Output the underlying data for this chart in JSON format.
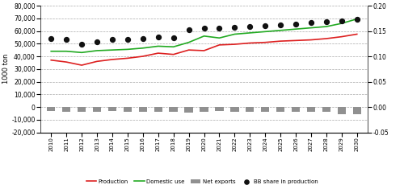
{
  "years": [
    2010,
    2011,
    2012,
    2013,
    2014,
    2015,
    2016,
    2017,
    2018,
    2019,
    2020,
    2021,
    2022,
    2023,
    2024,
    2025,
    2026,
    2027,
    2028,
    2029,
    2030
  ],
  "production": [
    37000,
    35500,
    33000,
    36000,
    37500,
    38500,
    40000,
    42500,
    41500,
    45000,
    44500,
    49000,
    49500,
    50500,
    51000,
    52000,
    52500,
    53000,
    54000,
    55500,
    57500
  ],
  "domestic_use": [
    44000,
    44000,
    43000,
    44500,
    45000,
    45500,
    46500,
    48000,
    47500,
    51000,
    56000,
    54500,
    57500,
    58500,
    59500,
    60500,
    61500,
    62500,
    63500,
    66000,
    69500
  ],
  "net_exports": [
    -3000,
    -4000,
    -3500,
    -3500,
    -3000,
    -3500,
    -3500,
    -4000,
    -3500,
    -4500,
    -4000,
    -3000,
    -3500,
    -4000,
    -3500,
    -4000,
    -4000,
    -3500,
    -3500,
    -5500,
    -6000
  ],
  "bb_share": [
    0.135,
    0.133,
    0.124,
    0.128,
    0.133,
    0.134,
    0.135,
    0.138,
    0.136,
    0.153,
    0.156,
    0.156,
    0.158,
    0.159,
    0.16,
    0.162,
    0.164,
    0.166,
    0.168,
    0.17,
    0.173
  ],
  "production_color": "#dd2020",
  "domestic_use_color": "#22aa22",
  "net_exports_color": "#909090",
  "bb_share_color": "#111111",
  "ylabel_left": "1000 ton",
  "ylim_left": [
    -20000,
    80000
  ],
  "ylim_right": [
    -0.05,
    0.2
  ],
  "yticks_left": [
    -20000,
    -10000,
    0,
    10000,
    20000,
    30000,
    40000,
    50000,
    60000,
    70000,
    80000
  ],
  "yticks_right": [
    -0.05,
    0.0,
    0.05,
    0.1,
    0.15,
    0.2
  ],
  "legend_labels": [
    "Net exports",
    "Production",
    "Domestic use",
    "BB share in production"
  ],
  "background_color": "#ffffff",
  "grid_color": "#aaaaaa"
}
